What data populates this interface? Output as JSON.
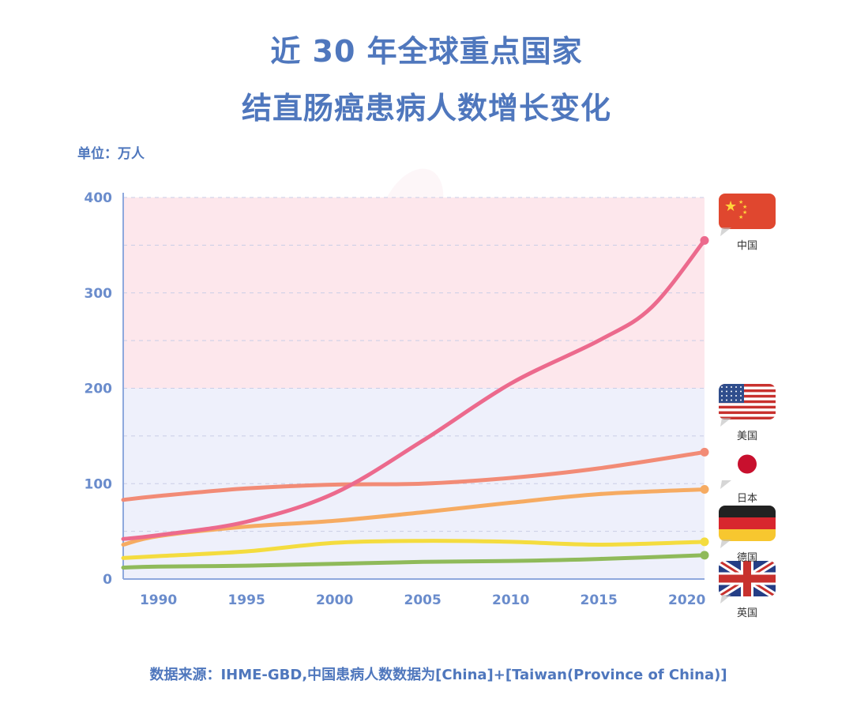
{
  "title_line1": "近 30 年全球重点国家",
  "title_line2": "结直肠癌患病人数增长变化",
  "unit_label": "单位：万人",
  "source_note": "数据来源：IHME-GBD,中国患病人数数据为[China]+[Taiwan(Province of China)]",
  "colors": {
    "title": "#4f77bd",
    "axis": "#8ea8dd",
    "band_upper": "#fde7ec",
    "band_lower": "#eef0fb"
  },
  "chart_data": {
    "type": "line",
    "title": "近 30 年全球重点国家结直肠癌患病人数增长变化",
    "ylabel": "单位：万人",
    "xlabel": "",
    "xlim": [
      1988,
      2021
    ],
    "ylim": [
      0,
      400
    ],
    "x_ticks": [
      1990,
      1995,
      2000,
      2005,
      2010,
      2015,
      2020
    ],
    "y_ticks": [
      0,
      100,
      200,
      300,
      400
    ],
    "grid": "dashed horizontal",
    "legend": "flags at right",
    "series": [
      {
        "name": "中国",
        "key": "china",
        "color": "#ec6a8d",
        "flag": "china-flag",
        "x": [
          1988,
          1990,
          1995,
          2000,
          2005,
          2010,
          2015,
          2018,
          2021
        ],
        "values": [
          42,
          46,
          60,
          90,
          145,
          205,
          250,
          285,
          355
        ]
      },
      {
        "name": "美国",
        "key": "usa",
        "color": "#f28b76",
        "flag": "usa-flag",
        "x": [
          1988,
          1990,
          1995,
          2000,
          2005,
          2010,
          2015,
          2021
        ],
        "values": [
          83,
          87,
          95,
          99,
          100,
          106,
          116,
          133
        ]
      },
      {
        "name": "日本",
        "key": "japan",
        "color": "#f6ab62",
        "flag": "japan-flag",
        "x": [
          1988,
          1990,
          1995,
          2000,
          2005,
          2010,
          2015,
          2021
        ],
        "values": [
          36,
          45,
          55,
          61,
          70,
          80,
          89,
          94
        ]
      },
      {
        "name": "德国",
        "key": "germany",
        "color": "#f4dc3f",
        "flag": "germany-flag",
        "x": [
          1988,
          1990,
          1995,
          2000,
          2005,
          2010,
          2015,
          2021
        ],
        "values": [
          22,
          24,
          29,
          38,
          40,
          39,
          36,
          39
        ]
      },
      {
        "name": "英国",
        "key": "uk",
        "color": "#8fba5a",
        "flag": "uk-flag",
        "x": [
          1988,
          1990,
          1995,
          2000,
          2005,
          2010,
          2015,
          2021
        ],
        "values": [
          12,
          13,
          14,
          16,
          18,
          19,
          21,
          25
        ]
      }
    ]
  }
}
